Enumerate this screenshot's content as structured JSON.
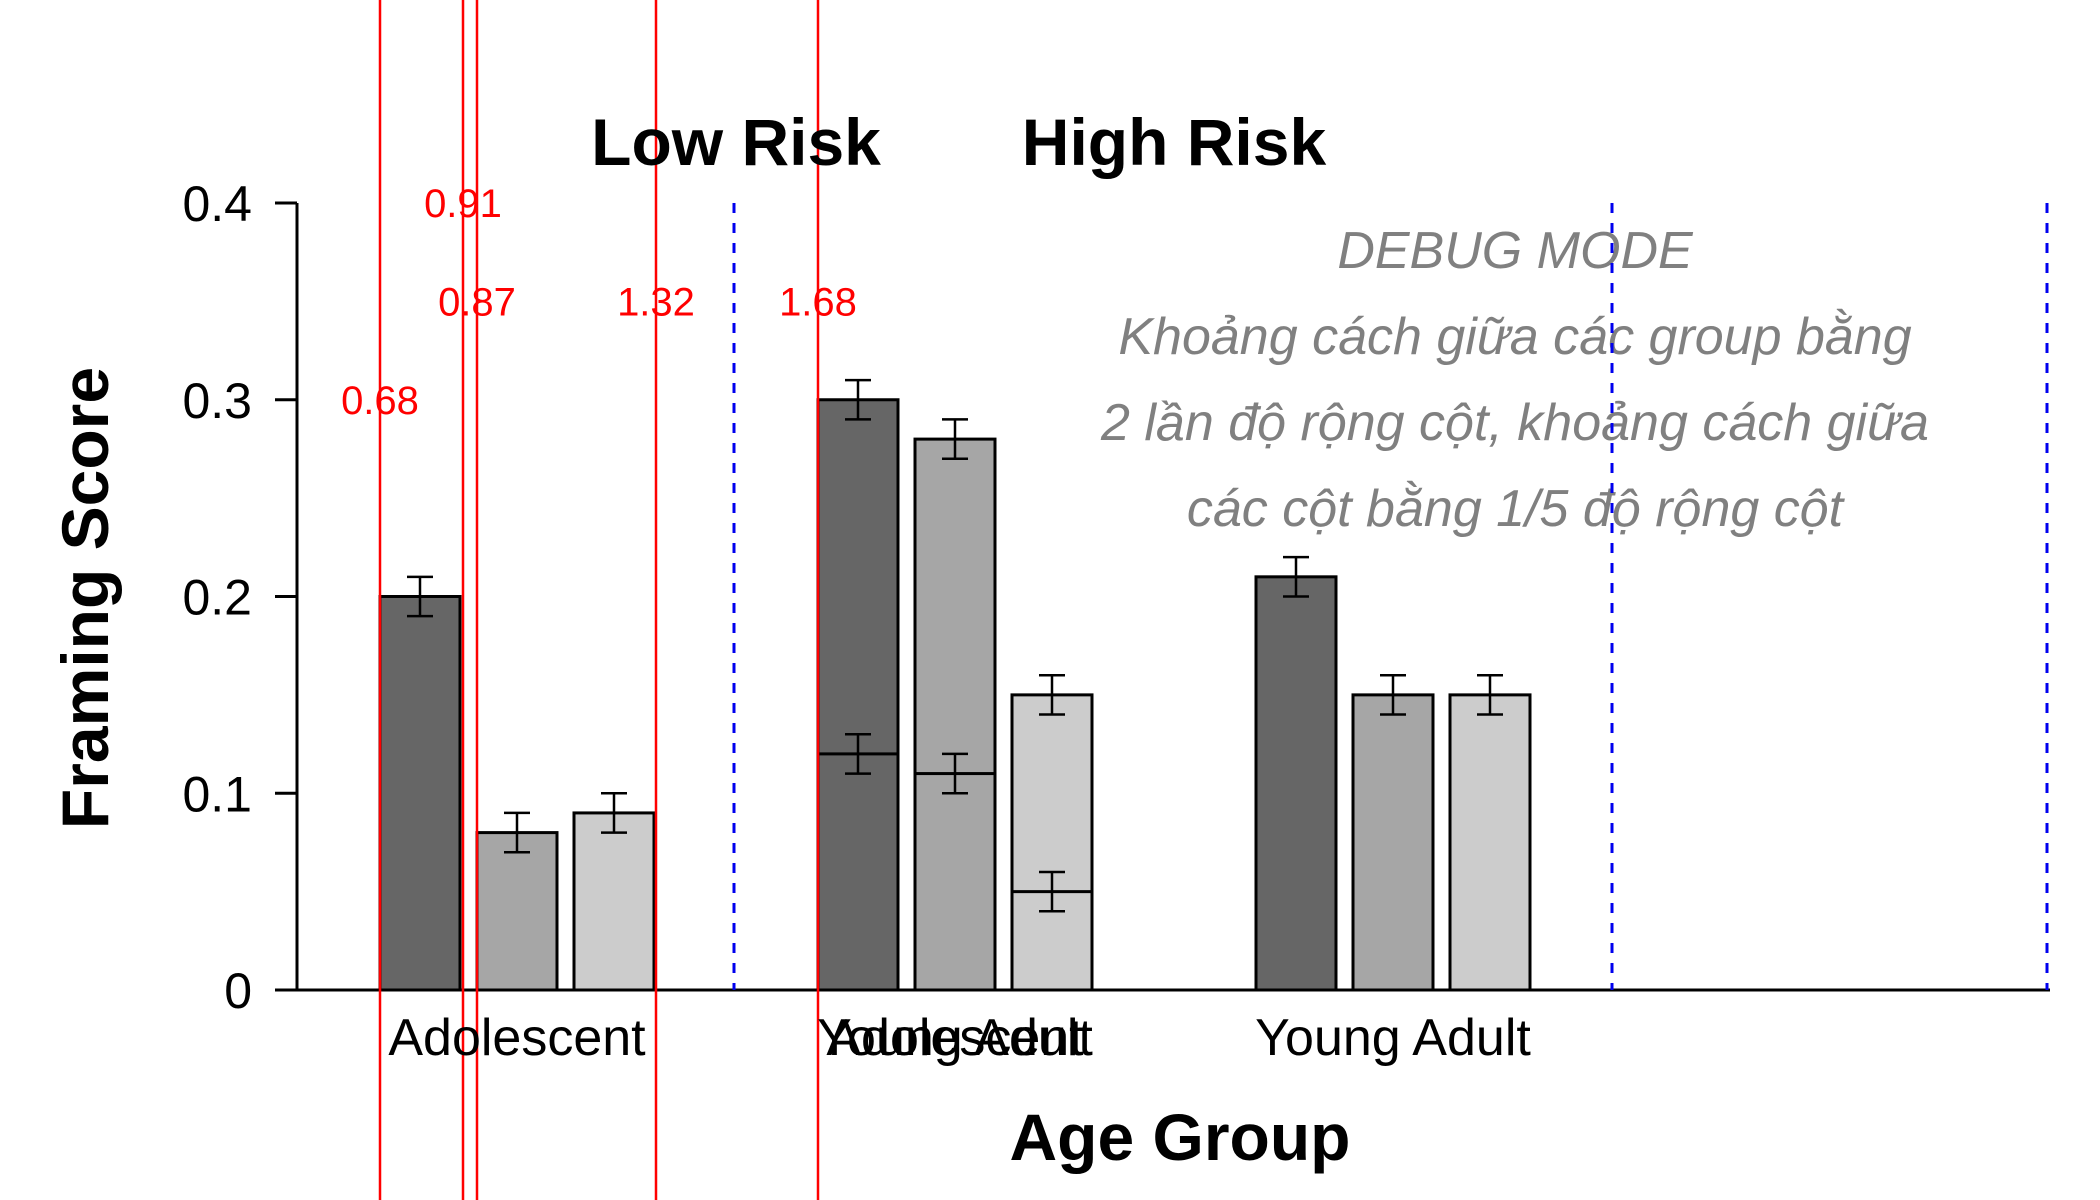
{
  "chart_data": {
    "type": "bar",
    "ylabel": "Framing Score",
    "xlabel": "Age Group",
    "ylim": [
      0,
      0.4
    ],
    "yticks": [
      0,
      0.1,
      0.2,
      0.3,
      0.4
    ],
    "ytick_labels": [
      "0",
      "0.1",
      "0.2",
      "0.3",
      "0.4"
    ],
    "series_colors": [
      "#666666",
      "#a6a6a6",
      "#cccccc"
    ],
    "panels": [
      {
        "title": "Low Risk",
        "categories": [
          "Adolescent",
          "Young Adult"
        ],
        "bars": [
          [
            {
              "value": 0.2,
              "err": 0.01
            },
            {
              "value": 0.08,
              "err": 0.01
            },
            {
              "value": 0.09,
              "err": 0.01
            }
          ],
          [
            {
              "value": 0.3,
              "err": 0.01
            },
            {
              "value": 0.28,
              "err": 0.01
            },
            {
              "value": 0.15,
              "err": 0.01
            }
          ]
        ]
      },
      {
        "title": "High Risk",
        "categories": [
          "Adolescent",
          "Young Adult"
        ],
        "bars": [
          [
            {
              "value": 0.12,
              "err": 0.01
            },
            {
              "value": 0.11,
              "err": 0.01
            },
            {
              "value": 0.05,
              "err": 0.01
            }
          ],
          [
            {
              "value": 0.21,
              "err": 0.01
            },
            {
              "value": 0.15,
              "err": 0.01
            },
            {
              "value": 0.15,
              "err": 0.01
            }
          ]
        ]
      }
    ],
    "debug": {
      "heading": "DEBUG MODE",
      "lines": [
        "Khoảng cách giữa các group bằng",
        "2 lần độ rộng cột, khoảng cách giữa",
        "các cột bằng 1/5 độ rộng cột"
      ],
      "markers": [
        {
          "label": "0.68",
          "x_frac": 0.68,
          "label_y": 0.3
        },
        {
          "label": "0.91",
          "x_frac": 0.91,
          "label_y": 0.4
        },
        {
          "label": "0.87",
          "x_frac": 0.87,
          "label_y": 0.35
        },
        {
          "label": "1.32",
          "x_frac": 1.32,
          "label_y": 0.35
        },
        {
          "label": "1.68",
          "x_frac": 1.68,
          "label_y": 0.35
        }
      ],
      "marker_color": "#ff0000",
      "divider_color": "#0000ee"
    }
  }
}
